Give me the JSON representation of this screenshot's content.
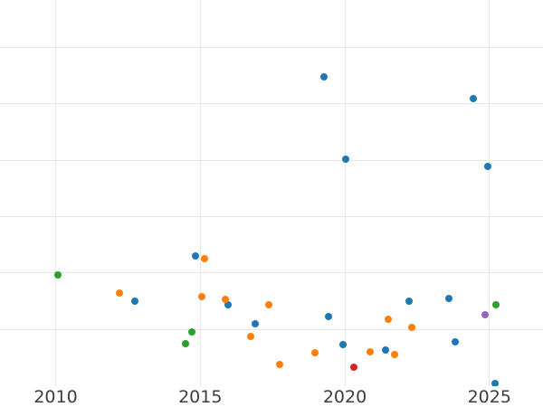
{
  "chart_data": {
    "type": "scatter",
    "title": "",
    "xlabel": "",
    "ylabel": "",
    "grid": true,
    "legend_position": "none",
    "x_ticks": [
      2010,
      2015,
      2020,
      2025
    ],
    "x_tick_labels": [
      "2010",
      "2015",
      "2020",
      "2025"
    ],
    "y_ticks": [
      1,
      2,
      3,
      4,
      5,
      6
    ],
    "y_tick_labels_visible": false,
    "xlim": [
      2008.08,
      2026.85
    ],
    "ylim": [
      0,
      6.85
    ],
    "axis_label_color": "#3d3d3d",
    "gridline_color": "#e7e7e7",
    "background_color": "#ffffff",
    "series": [
      {
        "name": "series-blue",
        "color": "#1f77b4",
        "points": [
          {
            "x": 2019.29,
            "y": 5.48
          },
          {
            "x": 2024.45,
            "y": 5.1
          },
          {
            "x": 2020.02,
            "y": 4.01
          },
          {
            "x": 2024.96,
            "y": 3.89
          },
          {
            "x": 2012.75,
            "y": 1.5
          },
          {
            "x": 2014.84,
            "y": 2.3
          },
          {
            "x": 2015.96,
            "y": 1.44
          },
          {
            "x": 2016.91,
            "y": 1.09
          },
          {
            "x": 2019.44,
            "y": 1.22
          },
          {
            "x": 2019.95,
            "y": 0.72
          },
          {
            "x": 2021.4,
            "y": 0.63
          },
          {
            "x": 2022.21,
            "y": 1.49
          },
          {
            "x": 2023.61,
            "y": 1.55
          },
          {
            "x": 2023.81,
            "y": 0.78
          },
          {
            "x": 2025.19,
            "y": 0.04
          }
        ]
      },
      {
        "name": "series-orange",
        "color": "#ff7f0e",
        "points": [
          {
            "x": 2012.22,
            "y": 1.65
          },
          {
            "x": 2015.06,
            "y": 1.57
          },
          {
            "x": 2015.14,
            "y": 2.26
          },
          {
            "x": 2015.88,
            "y": 1.53
          },
          {
            "x": 2016.75,
            "y": 0.87
          },
          {
            "x": 2017.36,
            "y": 1.44
          },
          {
            "x": 2017.75,
            "y": 0.37
          },
          {
            "x": 2018.96,
            "y": 0.58
          },
          {
            "x": 2020.87,
            "y": 0.6
          },
          {
            "x": 2021.51,
            "y": 1.18
          },
          {
            "x": 2021.73,
            "y": 0.55
          },
          {
            "x": 2022.31,
            "y": 1.04
          }
        ]
      },
      {
        "name": "series-green",
        "color": "#2ca02c",
        "points": [
          {
            "x": 2010.08,
            "y": 1.96
          },
          {
            "x": 2014.49,
            "y": 0.75
          },
          {
            "x": 2014.71,
            "y": 0.95
          },
          {
            "x": 2025.24,
            "y": 1.43
          }
        ]
      },
      {
        "name": "series-red",
        "color": "#d62728",
        "points": [
          {
            "x": 2020.3,
            "y": 0.32
          }
        ]
      },
      {
        "name": "series-purple",
        "color": "#9467bd",
        "points": [
          {
            "x": 2024.86,
            "y": 1.25
          }
        ]
      }
    ]
  }
}
